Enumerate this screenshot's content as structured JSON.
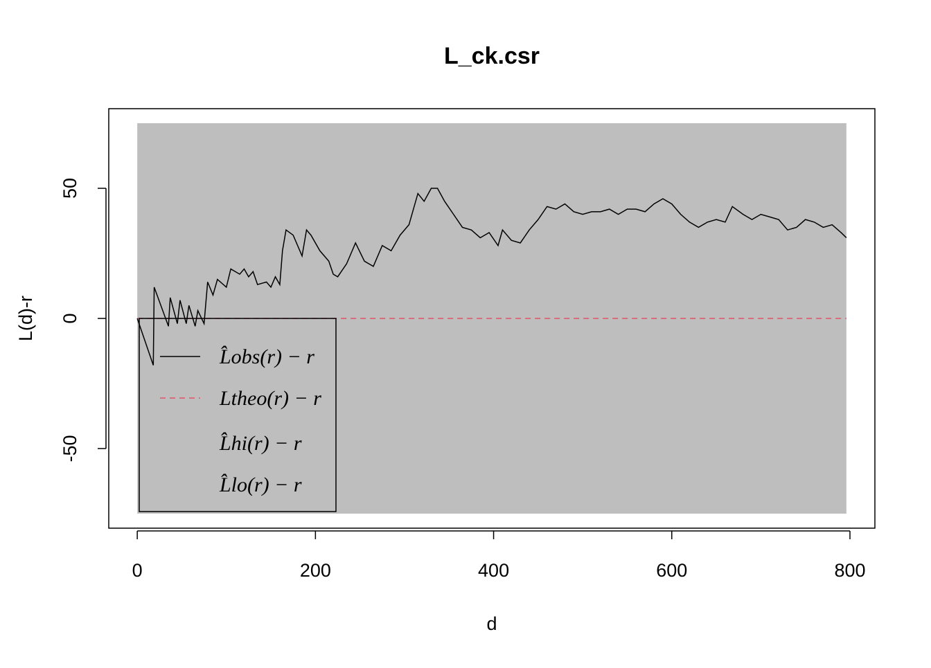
{
  "chart_data": {
    "type": "line",
    "title": "L_ck.csr",
    "x_label": "d",
    "y_label": "L(d)-r",
    "xlim": [
      -32,
      828
    ],
    "ylim": [
      -80.6,
      80.6
    ],
    "xticks": [
      0,
      200,
      400,
      600,
      800
    ],
    "yticks": [
      -50,
      0,
      50
    ],
    "legend": "bottom-left",
    "series": [
      {
        "name": "L̂obs(r) − r",
        "color": "#000000",
        "dashed": false,
        "x": [
          0,
          18,
          19,
          35,
          37,
          45,
          48,
          55,
          58,
          65,
          68,
          75,
          79,
          85,
          90,
          100,
          105,
          115,
          120,
          125,
          130,
          135,
          145,
          150,
          155,
          160,
          163,
          167,
          175,
          185,
          190,
          195,
          205,
          215,
          220,
          225,
          235,
          245,
          255,
          265,
          275,
          285,
          295,
          305,
          315,
          322,
          330,
          337,
          345,
          355,
          365,
          375,
          385,
          395,
          405,
          410,
          420,
          430,
          440,
          450,
          460,
          470,
          480,
          490,
          500,
          510,
          520,
          530,
          540,
          550,
          560,
          570,
          580,
          590,
          600,
          610,
          620,
          630,
          640,
          650,
          660,
          668,
          680,
          690,
          700,
          710,
          720,
          730,
          740,
          750,
          760,
          770,
          780,
          790,
          796
        ],
        "values": [
          0,
          -18,
          12,
          -3,
          8,
          -2,
          7,
          -2,
          5,
          -3,
          3,
          -2,
          14,
          9,
          15,
          12,
          19,
          17,
          19,
          16,
          18,
          13,
          14,
          12,
          16,
          13,
          26,
          34,
          32,
          24,
          34,
          32,
          26,
          22,
          17,
          16,
          21,
          29,
          22,
          20,
          28,
          26,
          32,
          36,
          48,
          45,
          50,
          50,
          45,
          40,
          35,
          34,
          31,
          33,
          28,
          34,
          30,
          29,
          34,
          38,
          43,
          42,
          44,
          41,
          40,
          41,
          41,
          42,
          40,
          42,
          42,
          41,
          44,
          46,
          44,
          40,
          37,
          35,
          37,
          38,
          37,
          43,
          40,
          38,
          40,
          39,
          38,
          34,
          35,
          38,
          37,
          35,
          36,
          33,
          31
        ]
      },
      {
        "name": "Ltheo(r) − r",
        "color": "#DF536B",
        "dashed": true,
        "x": [
          0,
          796
        ],
        "values": [
          0,
          0
        ]
      },
      {
        "name": "L̂hi(r) − r",
        "color": "#BEBEBE",
        "dashed": false,
        "x": [
          0,
          796
        ],
        "values": [
          75,
          75
        ]
      },
      {
        "name": "L̂lo(r) − r",
        "color": "#BEBEBE",
        "dashed": false,
        "x": [
          0,
          796
        ],
        "values": [
          -75,
          -75
        ]
      }
    ]
  }
}
